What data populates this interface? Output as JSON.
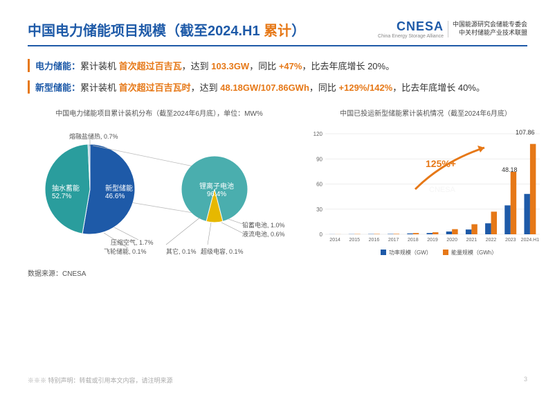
{
  "header": {
    "title_a": "中国电力储能项目规模（截至2024.H1",
    "title_b": "累计",
    "title_c": "）",
    "logo_main": "CNESA",
    "logo_sub": "China Energy Storage Alliance",
    "logo_cn1": "中国能源研究会储能专委会",
    "logo_cn2": "中关村储能产业技术联盟"
  },
  "stats": {
    "line1_label": "电力储能：",
    "line1_a": "累计装机 ",
    "line1_b": "首次超过百吉瓦",
    "line1_c": "，达到 ",
    "line1_d": "103.3GW",
    "line1_e": "，同比 ",
    "line1_f": "+47%",
    "line1_g": "，比去年底增长 20%。",
    "line2_label": "新型储能：",
    "line2_a": "累计装机 ",
    "line2_b": "首次超过百吉瓦时",
    "line2_c": "，达到 ",
    "line2_d": "48.18GW/107.86GWh",
    "line2_e": "，同比 ",
    "line2_f": "+129%/142%",
    "line2_g": "，比去年底增长 40%。"
  },
  "pie": {
    "title": "中国电力储能项目累计装机分布（截至2024年6月底），单位：MW%",
    "main_slices": [
      {
        "label": "抽水蓄能",
        "pct": "52.7%",
        "color": "#1e5aa8"
      },
      {
        "label": "新型储能",
        "pct": "46.6%",
        "color": "#3ba9a9"
      },
      {
        "label": "熔融盐储热",
        "pct": "0.7%",
        "color": "#7fb8d4"
      }
    ],
    "sub_slices": [
      {
        "label": "锂离子电池",
        "pct": "96.4%",
        "color": "#5ab5b5"
      },
      {
        "label": "压缩空气",
        "pct": "1.7%",
        "color": "#888"
      },
      {
        "label": "飞轮储能",
        "pct": "0.1%",
        "color": "#888"
      },
      {
        "label": "其它",
        "pct": "0.1%",
        "color": "#888"
      },
      {
        "label": "铅蓄电池",
        "pct": "1.0%",
        "color": "#e6b800"
      },
      {
        "label": "液流电池",
        "pct": "0.6%",
        "color": "#888"
      },
      {
        "label": "超级电容",
        "pct": "0.1%",
        "color": "#888"
      }
    ],
    "colors": {
      "main1": "#1e5aa8",
      "main2": "#2a9d9d",
      "main3": "#a8c8dc",
      "sub": "#4aaeae"
    }
  },
  "bar": {
    "title": "中国已投运新型储能累计装机情况（截至2024年6月底）",
    "years": [
      "2014",
      "2015",
      "2016",
      "2017",
      "2018",
      "2019",
      "2020",
      "2021",
      "2022",
      "2023",
      "2024.H1"
    ],
    "power_gw": [
      0.1,
      0.2,
      0.3,
      0.4,
      1.0,
      1.5,
      3.3,
      5.7,
      13.1,
      34.5,
      48.18
    ],
    "energy_gwh": [
      0.1,
      0.3,
      0.4,
      0.5,
      1.5,
      2.4,
      6.1,
      12.0,
      27.0,
      74.5,
      107.86
    ],
    "ylim": [
      0,
      120
    ],
    "ytick_step": 30,
    "annotation": "125%+",
    "legend": {
      "power": "功率规模（GW）",
      "energy": "能量规模（GWh）"
    },
    "colors": {
      "power": "#1e5aa8",
      "energy": "#e67817",
      "grid": "#e8e8e8"
    },
    "val_labels": {
      "power_last": "48.18",
      "energy_last": "107.86"
    }
  },
  "source": "数据来源：CNESA",
  "footer": {
    "disclaimer": "※※※ 特别声明：转载或引用本文内容，请注明来源",
    "page": "3"
  }
}
